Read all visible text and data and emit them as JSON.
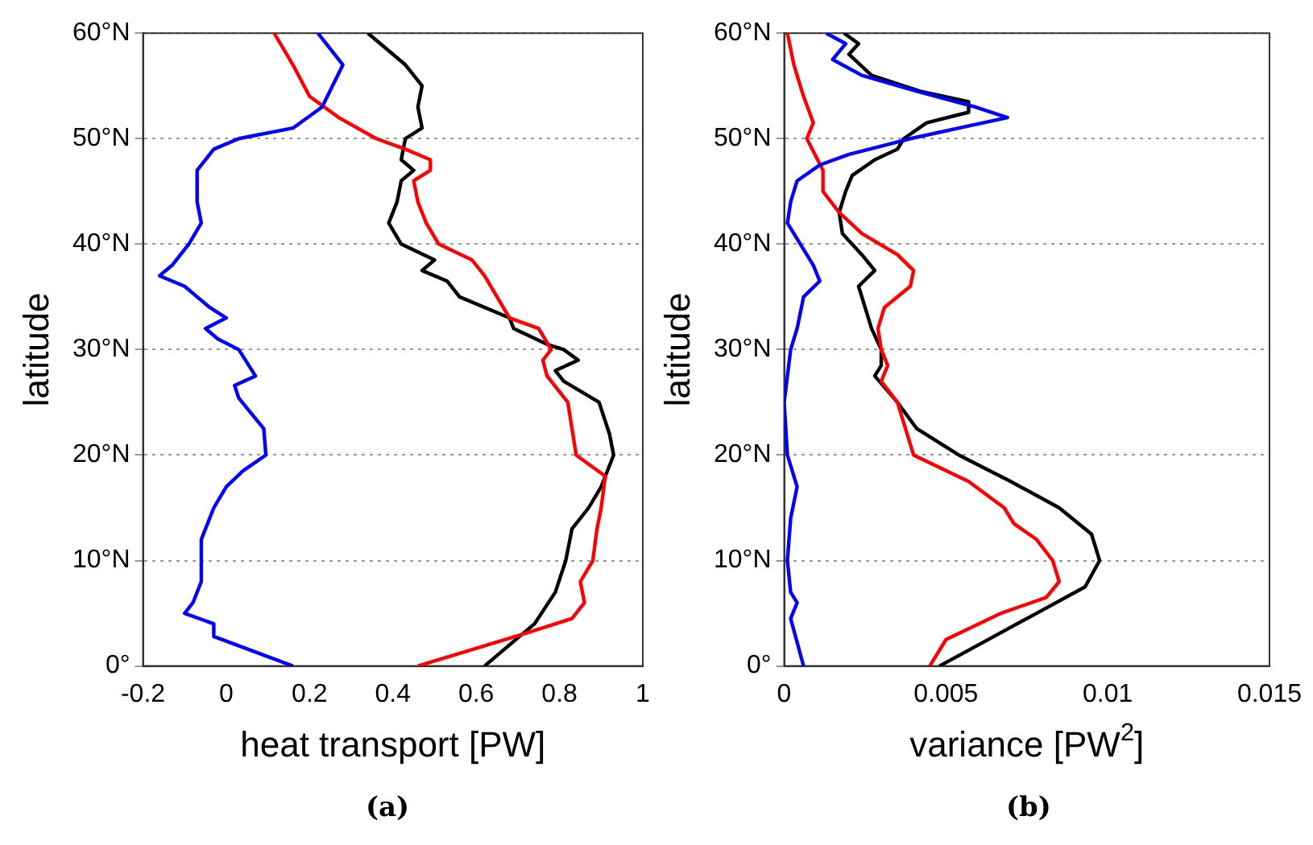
{
  "chart_data": [
    {
      "type": "line",
      "orientation": "horizontal",
      "xlabel": "heat transport [PW]",
      "ylabel": "latitude",
      "annotations": [
        "(a)"
      ],
      "xlim": [
        -0.2,
        1
      ],
      "xticks": [
        -0.2,
        0,
        0.2,
        0.4,
        0.6,
        0.8,
        1
      ],
      "ylim": [
        0,
        60
      ],
      "yticks": [
        {
          "value": 0,
          "label": "0°"
        },
        {
          "value": 10,
          "label": "10°N"
        },
        {
          "value": 20,
          "label": "20°N"
        },
        {
          "value": 30,
          "label": "30°N"
        },
        {
          "value": 40,
          "label": "40°N"
        },
        {
          "value": 50,
          "label": "50°N"
        },
        {
          "value": 60,
          "label": "60°N"
        }
      ],
      "grid": "y",
      "legend": false,
      "marker": "none",
      "line_style": "solid",
      "series": [
        {
          "color": "#0000ff",
          "x": [
            0,
            2.8,
            4,
            5,
            6,
            8,
            10,
            12,
            15,
            17,
            18.5,
            20,
            22.5,
            25.4,
            26.6,
            27.5,
            30,
            31,
            32,
            33,
            34,
            35,
            36,
            37,
            38,
            40,
            42,
            44,
            47,
            49,
            50,
            51,
            53,
            57,
            60
          ],
          "values": [
            0.16,
            -0.03,
            -0.03,
            -0.1,
            -0.08,
            -0.06,
            -0.06,
            -0.06,
            -0.03,
            0,
            0.04,
            0.095,
            0.09,
            0.03,
            0.02,
            0.07,
            0.03,
            -0.02,
            -0.05,
            0,
            -0.04,
            -0.07,
            -0.1,
            -0.16,
            -0.13,
            -0.09,
            -0.06,
            -0.07,
            -0.07,
            -0.03,
            0.03,
            0.16,
            0.23,
            0.28,
            0.22
          ]
        },
        {
          "color": "#ff0000",
          "x": [
            0,
            3,
            4.5,
            6,
            8,
            10,
            13,
            15,
            18,
            20,
            25,
            27.5,
            29,
            30,
            32,
            33,
            35,
            37,
            38.5,
            40,
            42,
            44,
            46,
            47,
            48,
            49,
            50,
            52,
            54,
            57,
            60
          ],
          "values": [
            0.46,
            0.71,
            0.83,
            0.86,
            0.85,
            0.88,
            0.89,
            0.9,
            0.91,
            0.84,
            0.82,
            0.77,
            0.76,
            0.78,
            0.75,
            0.68,
            0.65,
            0.62,
            0.59,
            0.51,
            0.48,
            0.46,
            0.45,
            0.49,
            0.49,
            0.43,
            0.36,
            0.27,
            0.2,
            0.16,
            0.115
          ]
        },
        {
          "color": "#000000",
          "x": [
            0,
            2,
            4,
            7,
            10,
            13,
            15,
            17,
            20,
            22,
            25,
            27,
            28,
            29,
            30,
            30.5,
            32,
            33,
            35,
            36.5,
            37.5,
            38.5,
            40,
            42,
            44,
            46,
            47,
            48,
            50,
            51,
            53,
            55,
            57,
            60
          ],
          "values": [
            0.62,
            0.68,
            0.74,
            0.79,
            0.815,
            0.83,
            0.87,
            0.9,
            0.93,
            0.92,
            0.895,
            0.81,
            0.79,
            0.845,
            0.81,
            0.77,
            0.69,
            0.68,
            0.56,
            0.53,
            0.47,
            0.5,
            0.42,
            0.39,
            0.41,
            0.42,
            0.45,
            0.42,
            0.43,
            0.47,
            0.46,
            0.47,
            0.43,
            0.34
          ]
        }
      ]
    },
    {
      "type": "line",
      "orientation": "horizontal",
      "xlabel": "variance [PW$^{2}$]",
      "ylabel": "latitude",
      "annotations": [
        "(b)"
      ],
      "xlim": [
        0,
        0.015
      ],
      "xticks": [
        0,
        0.005,
        0.01,
        0.015
      ],
      "ylim": [
        0,
        60
      ],
      "yticks": [
        {
          "value": 0,
          "label": "0°"
        },
        {
          "value": 10,
          "label": "10°N"
        },
        {
          "value": 20,
          "label": "20°N"
        },
        {
          "value": 30,
          "label": "30°N"
        },
        {
          "value": 40,
          "label": "40°N"
        },
        {
          "value": 50,
          "label": "50°N"
        },
        {
          "value": 60,
          "label": "60°N"
        }
      ],
      "grid": "y",
      "legend": false,
      "marker": "none",
      "line_style": "solid",
      "series": [
        {
          "color": "#0000ff",
          "x": [
            0,
            4.5,
            6,
            7,
            10,
            14,
            17,
            20,
            25,
            30,
            32,
            35,
            36.5,
            38,
            40,
            42,
            44,
            46,
            47.5,
            48.5,
            50,
            51,
            52,
            53,
            54.5,
            56,
            57.5,
            59,
            60
          ],
          "values": [
            0.0006,
            0.0002,
            0.0004,
            0.0002,
            0.0001,
            0.0002,
            0.0004,
            0.0001,
            0,
            0.0002,
            0.0004,
            0.0006,
            0.0011,
            0.0009,
            0.0005,
            0.0001,
            0.0002,
            0.0004,
            0.0011,
            0.002,
            0.0039,
            0.0054,
            0.0069,
            0.0059,
            0.0041,
            0.0024,
            0.0015,
            0.0019,
            0.0013
          ]
        },
        {
          "color": "#ff0000",
          "x": [
            0,
            2.5,
            5,
            6.5,
            8,
            10,
            12,
            13.5,
            15,
            17.5,
            20,
            25,
            27,
            28.5,
            30,
            32,
            34,
            36,
            37.5,
            39,
            41,
            43,
            45,
            47,
            50,
            51.5,
            54,
            57,
            60
          ],
          "values": [
            0.0045,
            0.005,
            0.0067,
            0.0081,
            0.0085,
            0.0083,
            0.0078,
            0.0071,
            0.0068,
            0.0057,
            0.004,
            0.0035,
            0.003,
            0.0032,
            0.003,
            0.0029,
            0.0031,
            0.0039,
            0.004,
            0.0035,
            0.0024,
            0.0017,
            0.0012,
            0.0012,
            0.0007,
            0.0009,
            0.0006,
            0.0003,
            0.0001
          ]
        },
        {
          "color": "#000000",
          "x": [
            0,
            2.5,
            5,
            7.5,
            10,
            12.5,
            15,
            17.5,
            20,
            22.5,
            25,
            27.5,
            28.5,
            30,
            32,
            34,
            36,
            37.5,
            39,
            41,
            43,
            45,
            46.5,
            48,
            49,
            50,
            51.5,
            52.5,
            53.5,
            54.5,
            56,
            58,
            59,
            60
          ],
          "values": [
            0.0048,
            0.0063,
            0.0078,
            0.0093,
            0.00975,
            0.0095,
            0.0085,
            0.007,
            0.0054,
            0.0041,
            0.0035,
            0.0028,
            0.003,
            0.003,
            0.0027,
            0.0025,
            0.0023,
            0.0028,
            0.0024,
            0.0018,
            0.0017,
            0.0019,
            0.0021,
            0.0028,
            0.0035,
            0.0037,
            0.0044,
            0.0057,
            0.0057,
            0.0042,
            0.0027,
            0.002,
            0.0023,
            0.00185
          ]
        }
      ]
    }
  ]
}
